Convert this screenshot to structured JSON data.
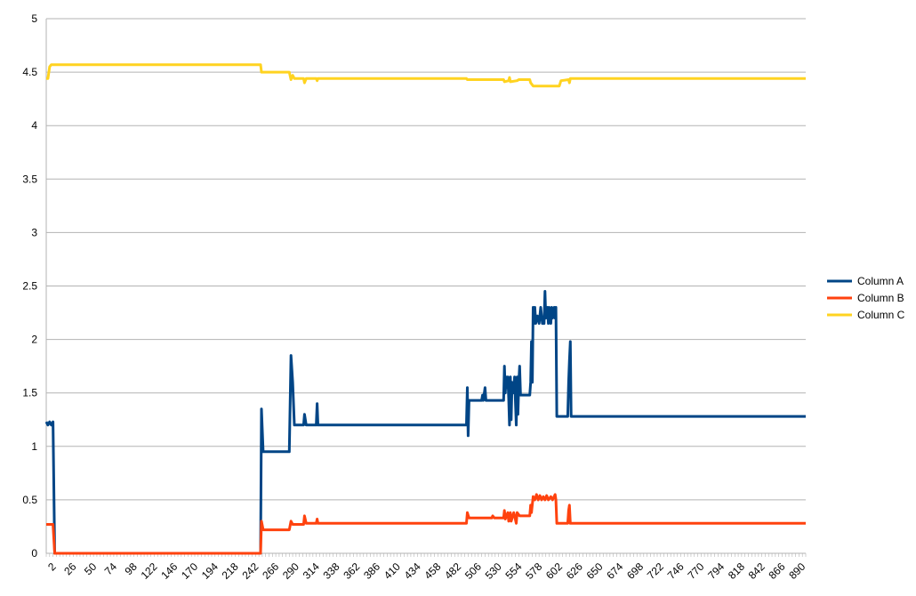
{
  "chart_data": {
    "type": "line",
    "title": "",
    "xlabel": "",
    "ylabel": "",
    "xlim": [
      2,
      902
    ],
    "ylim": [
      0,
      5
    ],
    "y_ticks": [
      "0",
      "0.5",
      "1",
      "1.5",
      "2",
      "2.5",
      "3",
      "3.5",
      "4",
      "4.5",
      "5"
    ],
    "x_tick_values": [
      2,
      26,
      50,
      74,
      98,
      122,
      146,
      170,
      194,
      218,
      242,
      266,
      290,
      314,
      338,
      362,
      386,
      410,
      434,
      458,
      482,
      506,
      530,
      554,
      578,
      602,
      626,
      650,
      674,
      698,
      722,
      746,
      770,
      794,
      818,
      842,
      866,
      890
    ],
    "x_label_values": [
      2,
      26,
      50,
      74,
      98,
      122,
      146,
      170,
      194,
      218,
      242,
      266,
      290,
      314,
      338,
      362,
      386,
      410,
      434,
      458,
      482,
      506,
      530,
      554,
      578,
      602,
      626,
      650,
      674,
      698,
      722,
      746,
      770,
      794,
      818,
      842,
      866,
      890
    ],
    "grid": "horizontal",
    "legend_position": "right",
    "series": [
      {
        "name": "Column A",
        "color": "#004586",
        "points": [
          [
            2,
            1.23
          ],
          [
            4,
            1.2
          ],
          [
            6,
            1.23
          ],
          [
            8,
            1.2
          ],
          [
            10,
            1.23
          ],
          [
            12,
            0
          ],
          [
            256,
            0
          ],
          [
            257,
            1.35
          ],
          [
            259,
            0.95
          ],
          [
            290,
            0.95
          ],
          [
            292,
            1.85
          ],
          [
            294,
            1.6
          ],
          [
            296,
            1.2
          ],
          [
            307,
            1.2
          ],
          [
            308,
            1.3
          ],
          [
            310,
            1.2
          ],
          [
            322,
            1.2
          ],
          [
            323,
            1.4
          ],
          [
            324,
            1.2
          ],
          [
            500,
            1.2
          ],
          [
            501,
            1.55
          ],
          [
            502,
            1.1
          ],
          [
            503,
            1.43
          ],
          [
            518,
            1.43
          ],
          [
            519,
            1.48
          ],
          [
            520,
            1.43
          ],
          [
            522,
            1.55
          ],
          [
            523,
            1.43
          ],
          [
            544,
            1.43
          ],
          [
            545,
            1.75
          ],
          [
            546,
            1.5
          ],
          [
            547,
            1.65
          ],
          [
            548,
            1.55
          ],
          [
            549,
            1.65
          ],
          [
            550,
            1.45
          ],
          [
            551,
            1.2
          ],
          [
            552,
            1.65
          ],
          [
            553,
            1.25
          ],
          [
            554,
            1.6
          ],
          [
            556,
            1.5
          ],
          [
            557,
            1.65
          ],
          [
            559,
            1.2
          ],
          [
            560,
            1.65
          ],
          [
            561,
            1.3
          ],
          [
            562,
            1.6
          ],
          [
            563,
            1.75
          ],
          [
            564,
            1.48
          ],
          [
            575,
            1.48
          ],
          [
            576,
            1.6
          ],
          [
            577,
            1.98
          ],
          [
            578,
            1.6
          ],
          [
            579,
            2.3
          ],
          [
            580,
            2.15
          ],
          [
            581,
            2.3
          ],
          [
            582,
            2.15
          ],
          [
            584,
            2.22
          ],
          [
            586,
            2.15
          ],
          [
            588,
            2.3
          ],
          [
            590,
            2.15
          ],
          [
            592,
            2.15
          ],
          [
            593,
            2.45
          ],
          [
            594,
            2.2
          ],
          [
            596,
            2.3
          ],
          [
            597,
            2.15
          ],
          [
            598,
            2.3
          ],
          [
            600,
            2.15
          ],
          [
            601,
            2.3
          ],
          [
            602,
            2.2
          ],
          [
            604,
            2.3
          ],
          [
            605,
            2.2
          ],
          [
            606,
            2.3
          ],
          [
            607,
            1.28
          ],
          [
            620,
            1.28
          ],
          [
            621,
            1.6
          ],
          [
            622,
            1.8
          ],
          [
            623,
            1.98
          ],
          [
            624,
            1.28
          ],
          [
            902,
            1.28
          ]
        ]
      },
      {
        "name": "Column B",
        "color": "#ff420e",
        "points": [
          [
            2,
            0.27
          ],
          [
            10,
            0.27
          ],
          [
            12,
            0
          ],
          [
            256,
            0
          ],
          [
            257,
            0.3
          ],
          [
            259,
            0.22
          ],
          [
            290,
            0.22
          ],
          [
            292,
            0.3
          ],
          [
            294,
            0.27
          ],
          [
            307,
            0.27
          ],
          [
            308,
            0.35
          ],
          [
            310,
            0.28
          ],
          [
            322,
            0.28
          ],
          [
            323,
            0.32
          ],
          [
            324,
            0.28
          ],
          [
            500,
            0.28
          ],
          [
            501,
            0.38
          ],
          [
            503,
            0.33
          ],
          [
            530,
            0.33
          ],
          [
            531,
            0.35
          ],
          [
            533,
            0.33
          ],
          [
            544,
            0.33
          ],
          [
            545,
            0.4
          ],
          [
            546,
            0.32
          ],
          [
            549,
            0.38
          ],
          [
            550,
            0.3
          ],
          [
            552,
            0.38
          ],
          [
            553,
            0.3
          ],
          [
            556,
            0.38
          ],
          [
            557,
            0.35
          ],
          [
            559,
            0.28
          ],
          [
            560,
            0.38
          ],
          [
            563,
            0.35
          ],
          [
            575,
            0.35
          ],
          [
            576,
            0.45
          ],
          [
            577,
            0.38
          ],
          [
            579,
            0.53
          ],
          [
            581,
            0.5
          ],
          [
            583,
            0.55
          ],
          [
            585,
            0.5
          ],
          [
            587,
            0.54
          ],
          [
            589,
            0.5
          ],
          [
            591,
            0.53
          ],
          [
            593,
            0.5
          ],
          [
            595,
            0.54
          ],
          [
            597,
            0.5
          ],
          [
            600,
            0.53
          ],
          [
            602,
            0.5
          ],
          [
            605,
            0.55
          ],
          [
            606,
            0.5
          ],
          [
            607,
            0.28
          ],
          [
            620,
            0.28
          ],
          [
            621,
            0.4
          ],
          [
            622,
            0.45
          ],
          [
            623,
            0.28
          ],
          [
            902,
            0.28
          ]
        ]
      },
      {
        "name": "Column C",
        "color": "#ffd320",
        "points": [
          [
            2,
            4.44
          ],
          [
            4,
            4.44
          ],
          [
            6,
            4.55
          ],
          [
            8,
            4.57
          ],
          [
            240,
            4.57
          ],
          [
            256,
            4.57
          ],
          [
            257,
            4.5
          ],
          [
            290,
            4.5
          ],
          [
            292,
            4.43
          ],
          [
            294,
            4.47
          ],
          [
            296,
            4.44
          ],
          [
            307,
            4.44
          ],
          [
            308,
            4.4
          ],
          [
            310,
            4.44
          ],
          [
            322,
            4.44
          ],
          [
            323,
            4.42
          ],
          [
            324,
            4.44
          ],
          [
            500,
            4.44
          ],
          [
            501,
            4.43
          ],
          [
            544,
            4.43
          ],
          [
            545,
            4.41
          ],
          [
            550,
            4.42
          ],
          [
            551,
            4.45
          ],
          [
            552,
            4.41
          ],
          [
            560,
            4.42
          ],
          [
            562,
            4.43
          ],
          [
            575,
            4.43
          ],
          [
            576,
            4.4
          ],
          [
            579,
            4.37
          ],
          [
            610,
            4.37
          ],
          [
            612,
            4.42
          ],
          [
            621,
            4.43
          ],
          [
            622,
            4.4
          ],
          [
            623,
            4.44
          ],
          [
            902,
            4.44
          ]
        ]
      }
    ]
  }
}
